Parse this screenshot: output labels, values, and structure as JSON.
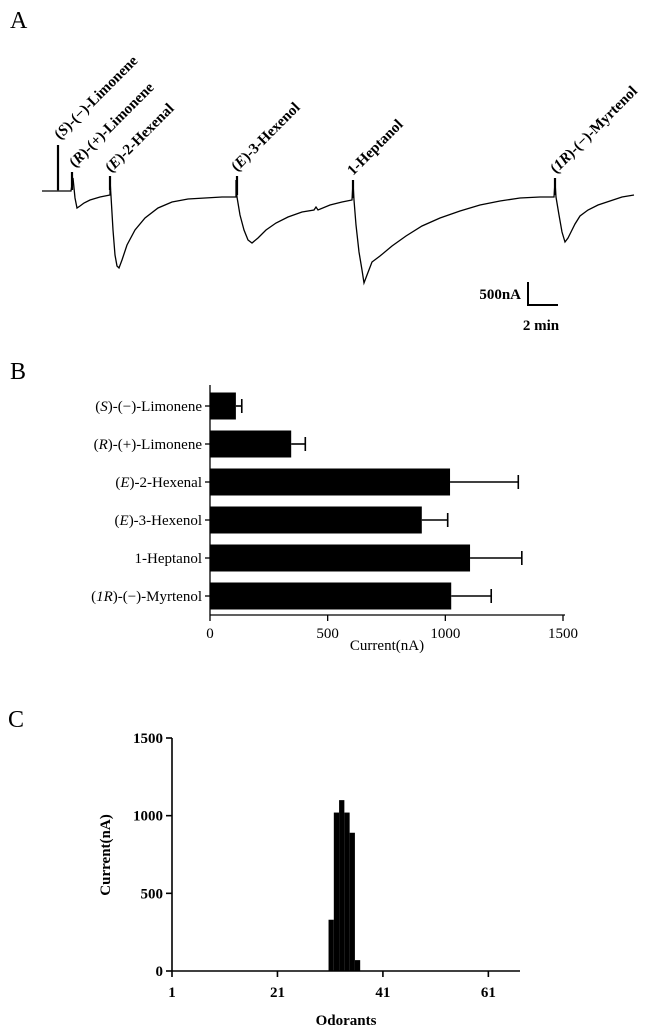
{
  "panels": {
    "a": "A",
    "b": "B",
    "c": "C"
  },
  "chart_data": [
    {
      "type": "line",
      "panel": "A",
      "stimuli": [
        {
          "label": "(S)-(−)-Limonene",
          "prefix": "(",
          "italic": "S",
          "suffix": ")-(−)-Limonene"
        },
        {
          "label": "(R)-(+)-Limonene",
          "prefix": "(",
          "italic": "R",
          "suffix": ")-(+)-Limonene"
        },
        {
          "label": "(E)-2-Hexenal",
          "prefix": "(",
          "italic": "E",
          "suffix": ")-2-Hexenal"
        },
        {
          "label": "(E)-3-Hexenol",
          "prefix": "(",
          "italic": "E",
          "suffix": ")-3-Hexenol"
        },
        {
          "label": "1-Heptanol",
          "prefix": "",
          "italic": "",
          "suffix": "1-Heptanol"
        },
        {
          "label": "(1R)-(−)-Myrtenol",
          "prefix": "(",
          "italic": "1R",
          "suffix": ")-(−)-Myrtenol"
        }
      ],
      "scale_bar": {
        "current": "500nA",
        "time": "2 min"
      }
    },
    {
      "type": "bar",
      "panel": "B",
      "orientation": "horizontal",
      "categories": [
        {
          "prefix": "(",
          "italic": "S",
          "suffix": ")-(−)-Limonene"
        },
        {
          "prefix": "(",
          "italic": "R",
          "suffix": ")-(+)-Limonene"
        },
        {
          "prefix": "(",
          "italic": "E",
          "suffix": ")-2-Hexenal"
        },
        {
          "prefix": "(",
          "italic": "E",
          "suffix": ")-3-Hexenol"
        },
        {
          "prefix": "",
          "italic": "",
          "suffix": "1-Heptanol"
        },
        {
          "prefix": "(",
          "italic": "1R",
          "suffix": ")-(−)-Myrtenol"
        }
      ],
      "values": [
        110,
        345,
        1020,
        900,
        1105,
        1025
      ],
      "errors": [
        25,
        60,
        290,
        110,
        220,
        170
      ],
      "xlim": [
        0,
        1500
      ],
      "xticks": [
        "0",
        "500",
        "1000",
        "1500"
      ],
      "xlabel": "Current(nA)"
    },
    {
      "type": "bar",
      "panel": "C",
      "x": [
        31,
        32,
        33,
        34,
        35,
        36
      ],
      "values": [
        330,
        1020,
        1100,
        1020,
        890,
        70
      ],
      "xlim": [
        1,
        67
      ],
      "ylim": [
        0,
        1500
      ],
      "xticks": [
        "1",
        "21",
        "41",
        "61"
      ],
      "yticks": [
        "0",
        "500",
        "1000",
        "1500"
      ],
      "xlabel": "Odorants",
      "ylabel": "Current(nA)"
    }
  ]
}
